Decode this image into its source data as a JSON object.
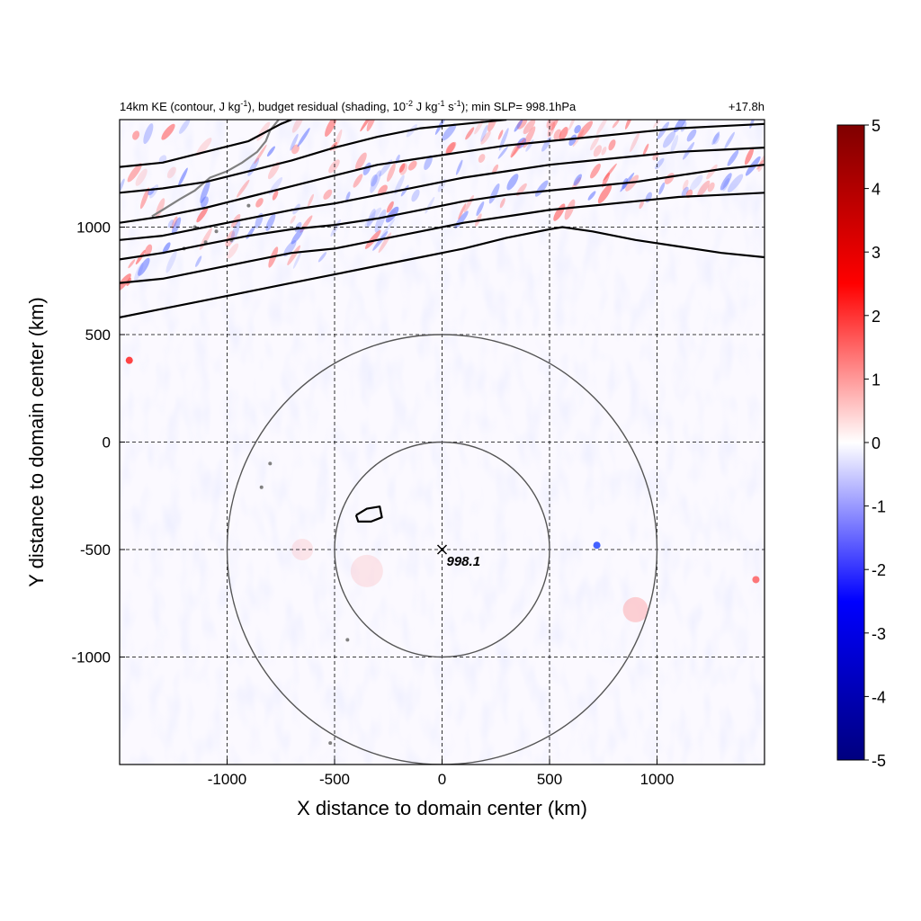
{
  "chart_data": {
    "type": "heatmap",
    "title_left": "14km KE (contour, J kg",
    "title_left_sup1": "-1",
    "title_left_mid": "), budget residual (shading, 10",
    "title_left_sup2": "-2",
    "title_left_mid2": " J kg",
    "title_left_sup3": "-1",
    "title_left_mid3": " s",
    "title_left_sup4": "-1",
    "title_left_end": "); min SLP= 998.1hPa",
    "title_right": "+17.8h",
    "xlabel": "X distance to domain center (km)",
    "ylabel": "Y distance to domain center (km)",
    "xlim": [
      -1500,
      1500
    ],
    "ylim": [
      -1500,
      1500
    ],
    "xticks": [
      -1000,
      -500,
      0,
      500,
      1000
    ],
    "yticks": [
      1000,
      500,
      0,
      -500,
      -1000
    ],
    "grid": "dashed",
    "colorbar": {
      "ticks": [
        5,
        4,
        3,
        2,
        1,
        0,
        -1,
        -2,
        -3,
        -4,
        -5
      ],
      "range": [
        -5,
        5
      ],
      "colors": [
        "#00007f",
        "#0000ff",
        "#ffffff",
        "#ff0000",
        "#7f0000"
      ]
    },
    "center_marker": {
      "x": 0,
      "y": -500,
      "label": "998.1"
    },
    "range_circles_km": [
      500,
      1000
    ],
    "ke_contours": [
      [
        [
          -1500,
          580
        ],
        [
          -1300,
          620
        ],
        [
          -1100,
          660
        ],
        [
          -900,
          700
        ],
        [
          -700,
          740
        ],
        [
          -500,
          780
        ],
        [
          -300,
          820
        ],
        [
          -100,
          860
        ],
        [
          100,
          900
        ],
        [
          300,
          950
        ],
        [
          500,
          990
        ],
        [
          560,
          1000
        ],
        [
          700,
          980
        ],
        [
          900,
          940
        ],
        [
          1100,
          910
        ],
        [
          1300,
          880
        ],
        [
          1500,
          860
        ]
      ],
      [
        [
          -1500,
          740
        ],
        [
          -1300,
          760
        ],
        [
          -1100,
          800
        ],
        [
          -900,
          840
        ],
        [
          -700,
          880
        ],
        [
          -500,
          900
        ],
        [
          -300,
          940
        ],
        [
          -100,
          980
        ],
        [
          100,
          1020
        ],
        [
          300,
          1050
        ],
        [
          500,
          1080
        ],
        [
          700,
          1100
        ],
        [
          900,
          1120
        ],
        [
          1100,
          1140
        ],
        [
          1300,
          1150
        ],
        [
          1500,
          1160
        ]
      ],
      [
        [
          -1500,
          850
        ],
        [
          -1300,
          880
        ],
        [
          -1100,
          920
        ],
        [
          -900,
          960
        ],
        [
          -700,
          990
        ],
        [
          -500,
          1010
        ],
        [
          -300,
          1040
        ],
        [
          -100,
          1080
        ],
        [
          100,
          1120
        ],
        [
          300,
          1150
        ],
        [
          500,
          1170
        ],
        [
          700,
          1190
        ],
        [
          900,
          1210
        ],
        [
          1100,
          1240
        ],
        [
          1300,
          1270
        ],
        [
          1500,
          1290
        ]
      ],
      [
        [
          -1500,
          940
        ],
        [
          -1300,
          960
        ],
        [
          -1100,
          1000
        ],
        [
          -900,
          1040
        ],
        [
          -700,
          1080
        ],
        [
          -500,
          1110
        ],
        [
          -300,
          1150
        ],
        [
          -100,
          1190
        ],
        [
          100,
          1230
        ],
        [
          300,
          1260
        ],
        [
          500,
          1290
        ],
        [
          700,
          1310
        ],
        [
          900,
          1330
        ],
        [
          1100,
          1350
        ],
        [
          1300,
          1360
        ],
        [
          1500,
          1370
        ]
      ],
      [
        [
          -1500,
          1020
        ],
        [
          -1300,
          1050
        ],
        [
          -1100,
          1090
        ],
        [
          -900,
          1140
        ],
        [
          -700,
          1190
        ],
        [
          -500,
          1240
        ],
        [
          -300,
          1290
        ],
        [
          -100,
          1320
        ],
        [
          100,
          1350
        ],
        [
          300,
          1380
        ],
        [
          500,
          1400
        ],
        [
          700,
          1420
        ],
        [
          900,
          1440
        ],
        [
          1100,
          1460
        ],
        [
          1300,
          1470
        ],
        [
          1500,
          1480
        ]
      ],
      [
        [
          -1500,
          1160
        ],
        [
          -1300,
          1180
        ],
        [
          -1100,
          1210
        ],
        [
          -900,
          1260
        ],
        [
          -700,
          1310
        ],
        [
          -500,
          1370
        ],
        [
          -300,
          1420
        ],
        [
          -100,
          1460
        ],
        [
          100,
          1480
        ],
        [
          300,
          1500
        ]
      ],
      [
        [
          -1500,
          1280
        ],
        [
          -1300,
          1300
        ],
        [
          -1100,
          1350
        ],
        [
          -900,
          1400
        ],
        [
          -750,
          1480
        ],
        [
          -700,
          1500
        ]
      ],
      [
        [
          -400,
          -340
        ],
        [
          -350,
          -310
        ],
        [
          -290,
          -300
        ],
        [
          -280,
          -350
        ],
        [
          -330,
          -370
        ],
        [
          -390,
          -370
        ],
        [
          -400,
          -340
        ]
      ]
    ]
  }
}
